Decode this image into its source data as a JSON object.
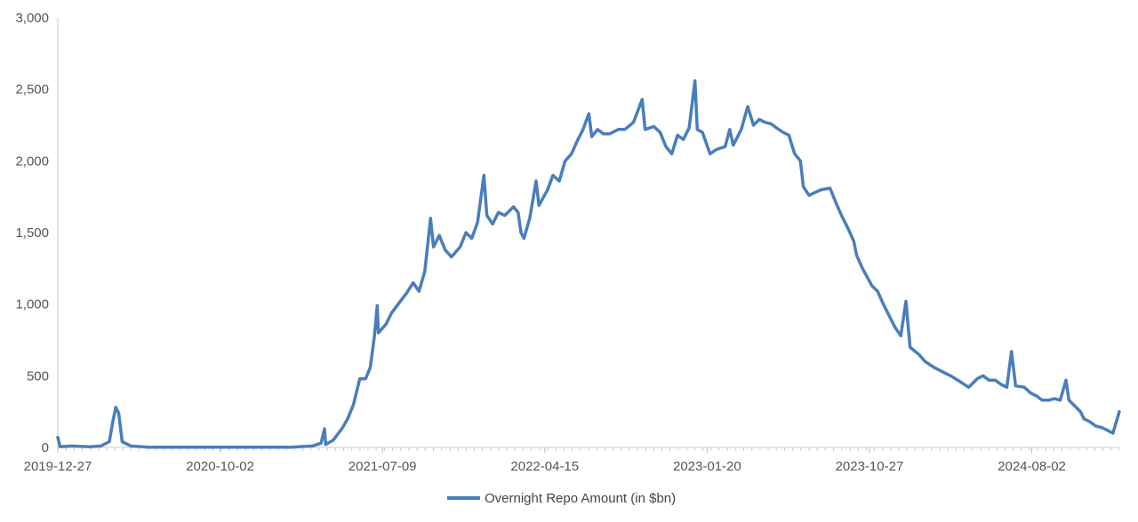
{
  "chart_data": {
    "type": "line",
    "title": "",
    "xlabel": "",
    "ylabel": "",
    "x_range": [
      "2019-12-27",
      "2024-12-31"
    ],
    "ylim": [
      0,
      3000
    ],
    "y_ticks": [
      0,
      500,
      1000,
      1500,
      2000,
      2500,
      3000
    ],
    "y_tick_labels": [
      "0",
      "500",
      "1,000",
      "1,500",
      "2,000",
      "2,500",
      "3,000"
    ],
    "x_tick_labels": [
      "2019-12-27",
      "2020-10-02",
      "2021-07-09",
      "2022-04-15",
      "2023-01-20",
      "2023-10-27",
      "2024-08-02"
    ],
    "grid": false,
    "legend_position": "bottom-center",
    "series": [
      {
        "name": "Overnight Repo Amount (in $bn)",
        "color": "#4a7ebb",
        "points": [
          [
            "2019-12-27",
            70
          ],
          [
            "2019-12-31",
            5
          ],
          [
            "2020-01-20",
            10
          ],
          [
            "2020-02-20",
            5
          ],
          [
            "2020-03-10",
            10
          ],
          [
            "2020-03-25",
            40
          ],
          [
            "2020-03-31",
            180
          ],
          [
            "2020-04-05",
            280
          ],
          [
            "2020-04-10",
            240
          ],
          [
            "2020-04-16",
            40
          ],
          [
            "2020-05-01",
            10
          ],
          [
            "2020-06-01",
            2
          ],
          [
            "2020-09-01",
            1
          ],
          [
            "2020-12-01",
            1
          ],
          [
            "2021-02-01",
            2
          ],
          [
            "2021-03-10",
            10
          ],
          [
            "2021-03-25",
            30
          ],
          [
            "2021-03-31",
            130
          ],
          [
            "2021-04-02",
            20
          ],
          [
            "2021-04-15",
            50
          ],
          [
            "2021-04-30",
            130
          ],
          [
            "2021-05-10",
            200
          ],
          [
            "2021-05-20",
            300
          ],
          [
            "2021-05-31",
            480
          ],
          [
            "2021-06-10",
            480
          ],
          [
            "2021-06-18",
            560
          ],
          [
            "2021-06-25",
            770
          ],
          [
            "2021-06-30",
            990
          ],
          [
            "2021-07-02",
            800
          ],
          [
            "2021-07-15",
            860
          ],
          [
            "2021-07-25",
            940
          ],
          [
            "2021-08-05",
            1000
          ],
          [
            "2021-08-20",
            1080
          ],
          [
            "2021-08-31",
            1150
          ],
          [
            "2021-09-10",
            1090
          ],
          [
            "2021-09-20",
            1230
          ],
          [
            "2021-09-30",
            1600
          ],
          [
            "2021-10-05",
            1400
          ],
          [
            "2021-10-15",
            1480
          ],
          [
            "2021-10-25",
            1380
          ],
          [
            "2021-11-05",
            1330
          ],
          [
            "2021-11-20",
            1400
          ],
          [
            "2021-11-30",
            1500
          ],
          [
            "2021-12-10",
            1460
          ],
          [
            "2021-12-20",
            1570
          ],
          [
            "2021-12-31",
            1900
          ],
          [
            "2022-01-05",
            1620
          ],
          [
            "2022-01-15",
            1560
          ],
          [
            "2022-01-25",
            1640
          ],
          [
            "2022-02-05",
            1620
          ],
          [
            "2022-02-20",
            1680
          ],
          [
            "2022-02-28",
            1640
          ],
          [
            "2022-03-05",
            1500
          ],
          [
            "2022-03-10",
            1460
          ],
          [
            "2022-03-20",
            1600
          ],
          [
            "2022-03-31",
            1860
          ],
          [
            "2022-04-05",
            1690
          ],
          [
            "2022-04-20",
            1800
          ],
          [
            "2022-04-29",
            1900
          ],
          [
            "2022-05-10",
            1860
          ],
          [
            "2022-05-20",
            2000
          ],
          [
            "2022-05-31",
            2050
          ],
          [
            "2022-06-10",
            2140
          ],
          [
            "2022-06-20",
            2220
          ],
          [
            "2022-06-30",
            2330
          ],
          [
            "2022-07-05",
            2170
          ],
          [
            "2022-07-15",
            2220
          ],
          [
            "2022-07-25",
            2190
          ],
          [
            "2022-08-05",
            2190
          ],
          [
            "2022-08-20",
            2220
          ],
          [
            "2022-08-31",
            2220
          ],
          [
            "2022-09-15",
            2270
          ],
          [
            "2022-09-30",
            2430
          ],
          [
            "2022-10-05",
            2220
          ],
          [
            "2022-10-20",
            2240
          ],
          [
            "2022-10-31",
            2200
          ],
          [
            "2022-11-10",
            2100
          ],
          [
            "2022-11-20",
            2050
          ],
          [
            "2022-11-30",
            2180
          ],
          [
            "2022-12-10",
            2150
          ],
          [
            "2022-12-20",
            2230
          ],
          [
            "2022-12-30",
            2560
          ],
          [
            "2023-01-03",
            2220
          ],
          [
            "2023-01-12",
            2200
          ],
          [
            "2023-01-25",
            2050
          ],
          [
            "2023-02-05",
            2080
          ],
          [
            "2023-02-20",
            2100
          ],
          [
            "2023-02-28",
            2220
          ],
          [
            "2023-03-06",
            2110
          ],
          [
            "2023-03-20",
            2220
          ],
          [
            "2023-03-31",
            2380
          ],
          [
            "2023-04-10",
            2250
          ],
          [
            "2023-04-20",
            2290
          ],
          [
            "2023-04-30",
            2270
          ],
          [
            "2023-05-10",
            2260
          ],
          [
            "2023-05-20",
            2230
          ],
          [
            "2023-05-31",
            2200
          ],
          [
            "2023-06-10",
            2180
          ],
          [
            "2023-06-20",
            2050
          ],
          [
            "2023-06-30",
            2000
          ],
          [
            "2023-07-05",
            1820
          ],
          [
            "2023-07-15",
            1760
          ],
          [
            "2023-07-25",
            1780
          ],
          [
            "2023-08-05",
            1800
          ],
          [
            "2023-08-20",
            1810
          ],
          [
            "2023-08-31",
            1700
          ],
          [
            "2023-09-10",
            1610
          ],
          [
            "2023-09-20",
            1530
          ],
          [
            "2023-09-30",
            1440
          ],
          [
            "2023-10-05",
            1340
          ],
          [
            "2023-10-15",
            1250
          ],
          [
            "2023-10-31",
            1130
          ],
          [
            "2023-11-10",
            1090
          ],
          [
            "2023-11-20",
            1000
          ],
          [
            "2023-11-30",
            920
          ],
          [
            "2023-12-10",
            840
          ],
          [
            "2023-12-20",
            780
          ],
          [
            "2023-12-29",
            1020
          ],
          [
            "2024-01-05",
            700
          ],
          [
            "2024-01-20",
            650
          ],
          [
            "2024-01-31",
            600
          ],
          [
            "2024-02-15",
            560
          ],
          [
            "2024-02-29",
            530
          ],
          [
            "2024-03-15",
            500
          ],
          [
            "2024-03-31",
            460
          ],
          [
            "2024-04-15",
            420
          ],
          [
            "2024-04-30",
            480
          ],
          [
            "2024-05-10",
            500
          ],
          [
            "2024-05-20",
            470
          ],
          [
            "2024-05-31",
            470
          ],
          [
            "2024-06-10",
            440
          ],
          [
            "2024-06-20",
            420
          ],
          [
            "2024-06-28",
            670
          ],
          [
            "2024-07-05",
            430
          ],
          [
            "2024-07-20",
            420
          ],
          [
            "2024-07-31",
            380
          ],
          [
            "2024-08-10",
            360
          ],
          [
            "2024-08-20",
            330
          ],
          [
            "2024-08-31",
            330
          ],
          [
            "2024-09-10",
            340
          ],
          [
            "2024-09-20",
            330
          ],
          [
            "2024-09-30",
            470
          ],
          [
            "2024-10-05",
            330
          ],
          [
            "2024-10-15",
            290
          ],
          [
            "2024-10-25",
            250
          ],
          [
            "2024-10-31",
            200
          ],
          [
            "2024-11-10",
            180
          ],
          [
            "2024-11-20",
            150
          ],
          [
            "2024-11-30",
            140
          ],
          [
            "2024-12-10",
            120
          ],
          [
            "2024-12-20",
            100
          ],
          [
            "2024-12-31",
            250
          ]
        ]
      }
    ]
  }
}
